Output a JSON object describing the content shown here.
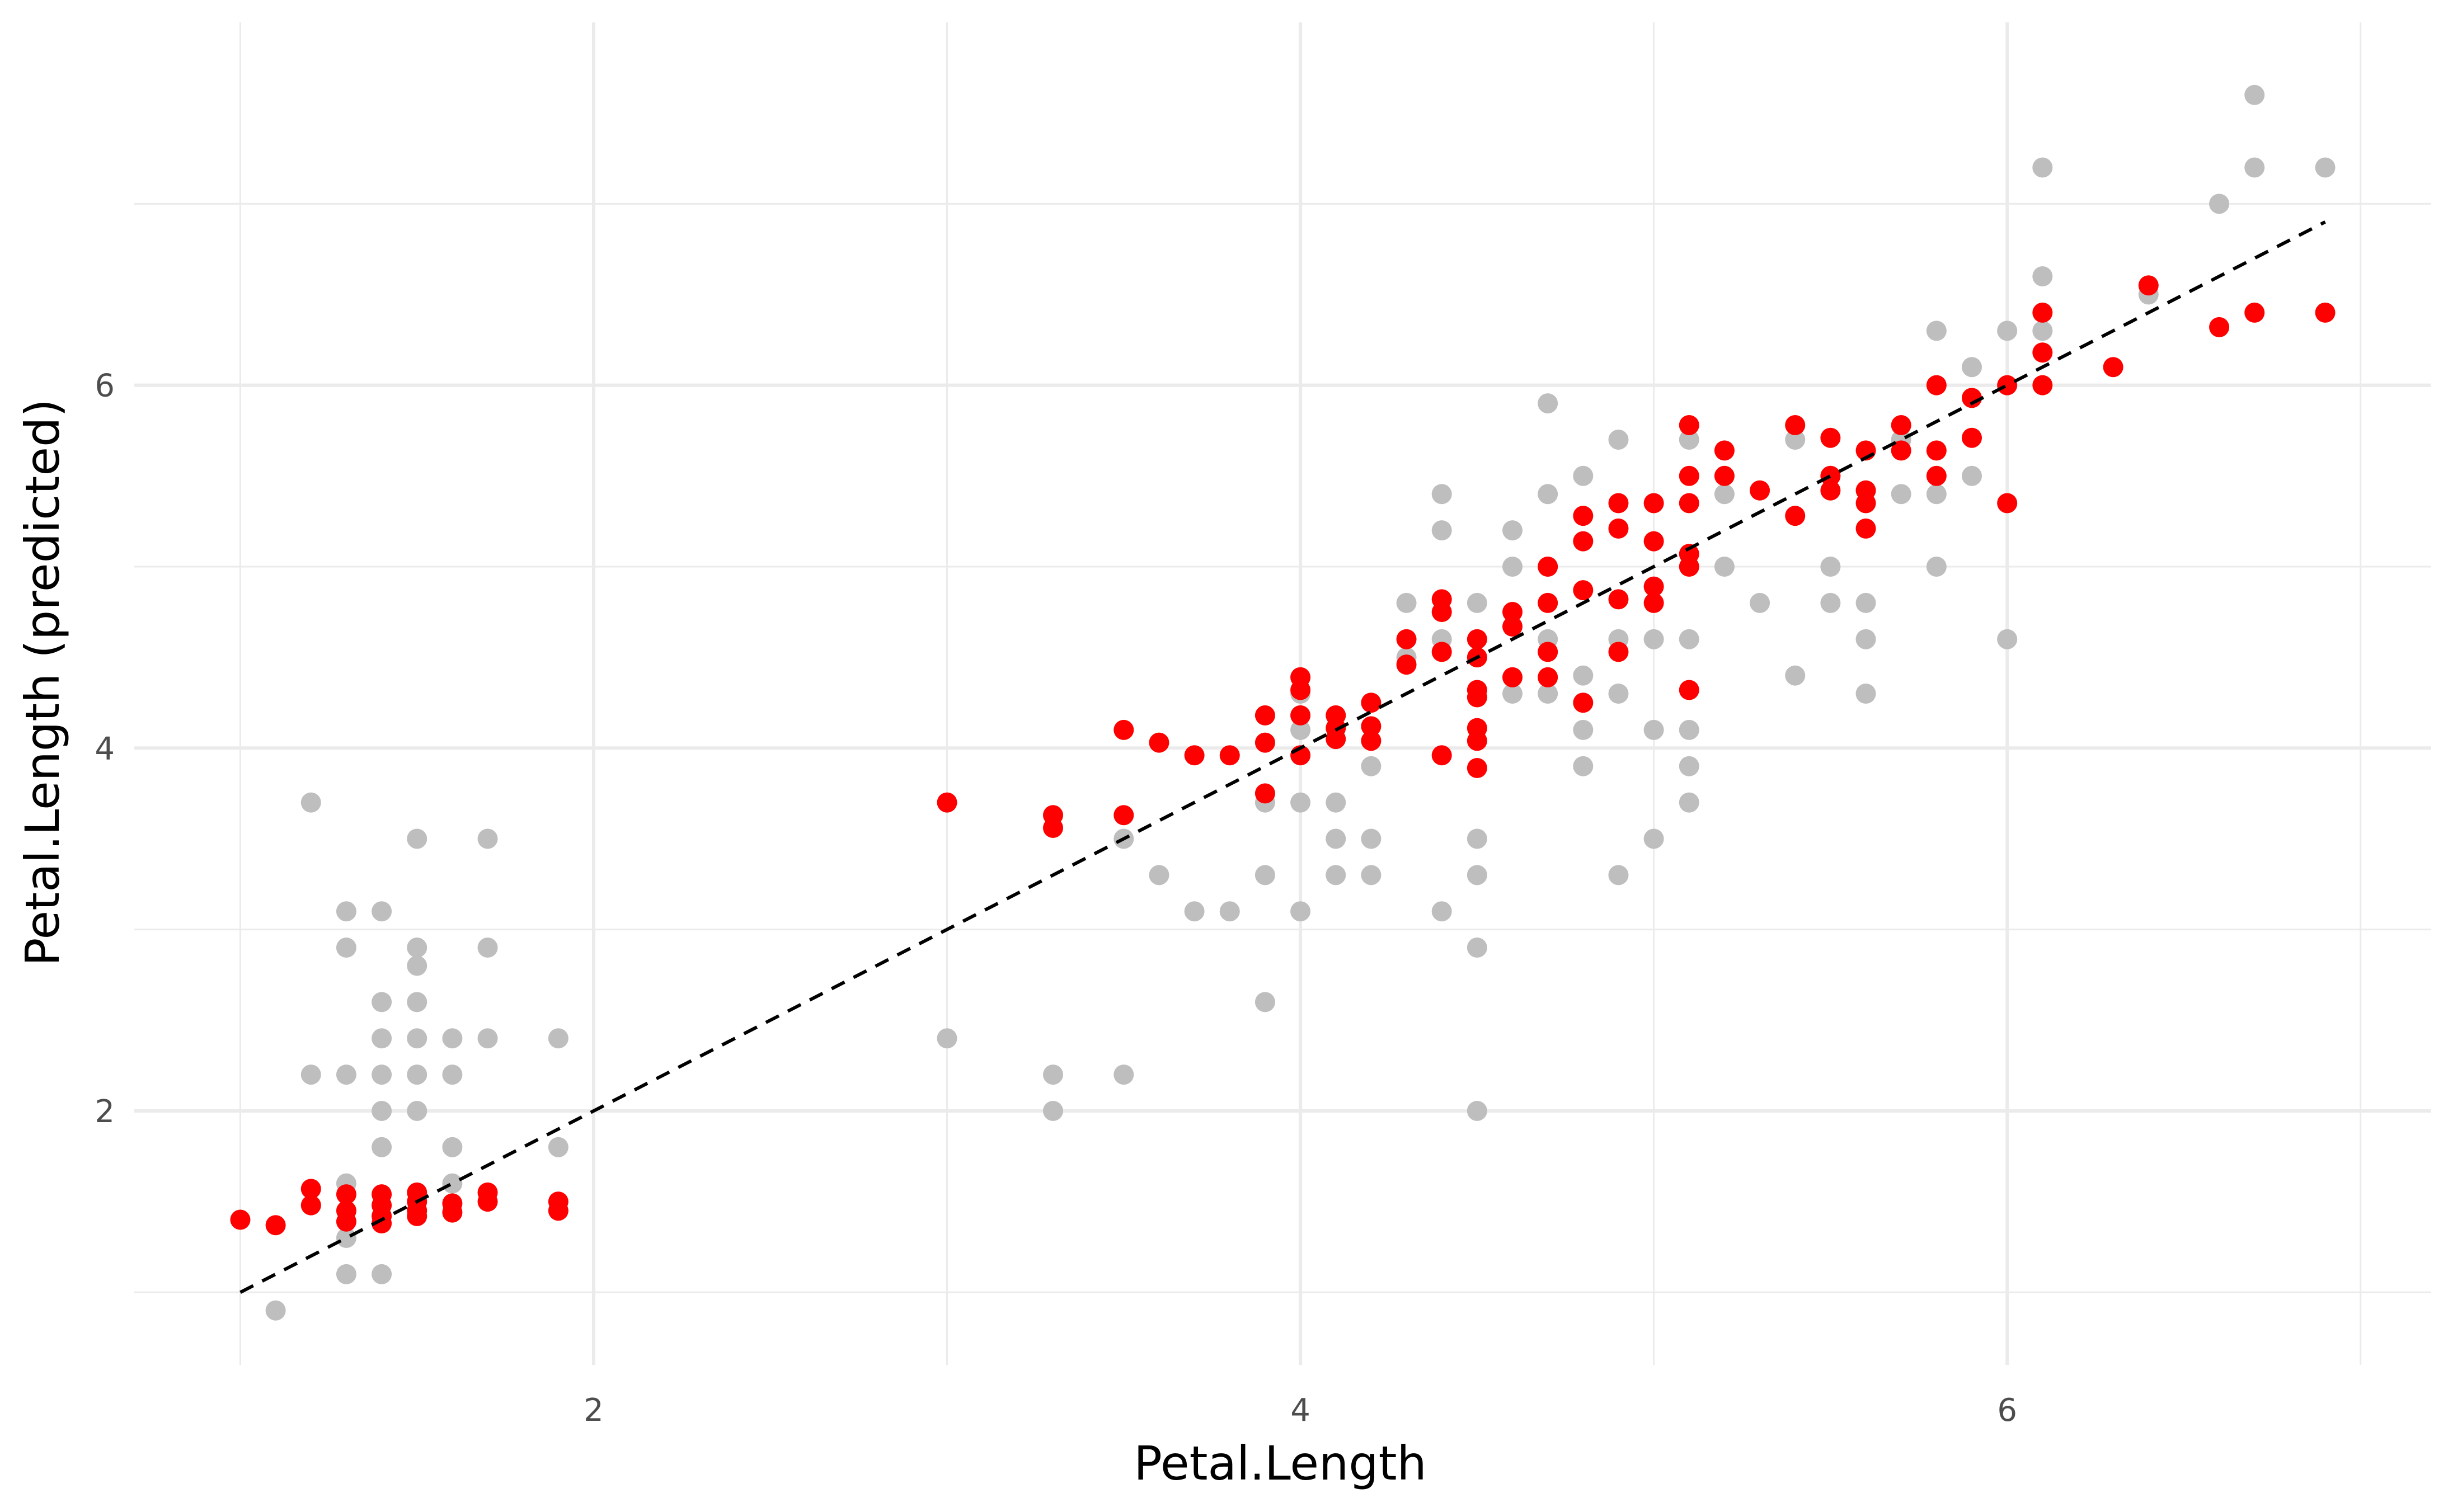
{
  "chart_data": {
    "type": "scatter",
    "title": "",
    "xlabel": "Petal.Length",
    "ylabel": "Petal.Length (predicted)",
    "xlim": [
      0.7,
      7.2
    ],
    "ylim": [
      0.6,
      8.0
    ],
    "x_ticks": [
      2,
      4,
      6
    ],
    "x_minor_ticks": [
      1,
      3,
      5,
      7
    ],
    "y_ticks": [
      2,
      4,
      6
    ],
    "y_minor_ticks": [
      1,
      3,
      5,
      7
    ],
    "x_tick_labels": [
      "2",
      "4",
      "6"
    ],
    "y_tick_labels": [
      "2",
      "4",
      "6"
    ],
    "grid": true,
    "legend": "none",
    "colors": {
      "background": "#ffffff",
      "grid": "#ebebeb",
      "gray_points": "#bebebe",
      "red_points": "#ff0000",
      "reference_line": "#000000"
    },
    "series": [
      {
        "color": "#bebebe",
        "points": [
          [
            1.0,
            1.4
          ],
          [
            1.1,
            0.9
          ],
          [
            1.2,
            3.7
          ],
          [
            1.2,
            2.2
          ],
          [
            1.3,
            3.1
          ],
          [
            1.3,
            2.9
          ],
          [
            1.3,
            2.2
          ],
          [
            1.3,
            1.6
          ],
          [
            1.3,
            1.3
          ],
          [
            1.3,
            1.1
          ],
          [
            1.4,
            3.1
          ],
          [
            1.4,
            2.6
          ],
          [
            1.4,
            2.4
          ],
          [
            1.4,
            2.2
          ],
          [
            1.4,
            2.0
          ],
          [
            1.4,
            1.8
          ],
          [
            1.4,
            1.1
          ],
          [
            1.5,
            3.5
          ],
          [
            1.5,
            2.9
          ],
          [
            1.5,
            2.8
          ],
          [
            1.5,
            2.6
          ],
          [
            1.5,
            2.4
          ],
          [
            1.5,
            2.2
          ],
          [
            1.5,
            2.0
          ],
          [
            1.6,
            2.4
          ],
          [
            1.6,
            2.2
          ],
          [
            1.6,
            1.8
          ],
          [
            1.6,
            1.6
          ],
          [
            1.7,
            3.5
          ],
          [
            1.7,
            2.9
          ],
          [
            1.7,
            2.4
          ],
          [
            1.9,
            2.4
          ],
          [
            1.9,
            1.8
          ],
          [
            3.0,
            2.4
          ],
          [
            3.3,
            2.2
          ],
          [
            3.3,
            2.0
          ],
          [
            3.5,
            3.5
          ],
          [
            3.5,
            2.2
          ],
          [
            3.6,
            3.3
          ],
          [
            3.7,
            3.1
          ],
          [
            3.8,
            3.1
          ],
          [
            3.9,
            3.7
          ],
          [
            3.9,
            3.3
          ],
          [
            3.9,
            2.6
          ],
          [
            4.0,
            4.3
          ],
          [
            4.0,
            4.1
          ],
          [
            4.0,
            3.7
          ],
          [
            4.0,
            3.1
          ],
          [
            4.1,
            3.7
          ],
          [
            4.1,
            3.5
          ],
          [
            4.1,
            3.3
          ],
          [
            4.2,
            3.9
          ],
          [
            4.2,
            3.5
          ],
          [
            4.2,
            3.3
          ],
          [
            4.3,
            4.8
          ],
          [
            4.3,
            4.5
          ],
          [
            4.4,
            4.6
          ],
          [
            4.4,
            5.4
          ],
          [
            4.4,
            5.2
          ],
          [
            4.4,
            3.1
          ],
          [
            4.5,
            4.8
          ],
          [
            4.5,
            4.5
          ],
          [
            4.5,
            3.5
          ],
          [
            4.5,
            3.3
          ],
          [
            4.5,
            2.9
          ],
          [
            4.5,
            2.0
          ],
          [
            4.6,
            5.2
          ],
          [
            4.6,
            5.0
          ],
          [
            4.6,
            4.3
          ],
          [
            4.7,
            5.9
          ],
          [
            4.7,
            5.4
          ],
          [
            4.7,
            5.0
          ],
          [
            4.7,
            4.6
          ],
          [
            4.7,
            4.3
          ],
          [
            4.8,
            5.5
          ],
          [
            4.8,
            4.4
          ],
          [
            4.8,
            4.1
          ],
          [
            4.8,
            3.9
          ],
          [
            4.9,
            5.7
          ],
          [
            4.9,
            4.6
          ],
          [
            4.9,
            4.3
          ],
          [
            4.9,
            3.3
          ],
          [
            5.0,
            4.6
          ],
          [
            5.0,
            4.1
          ],
          [
            5.0,
            3.5
          ],
          [
            5.1,
            5.7
          ],
          [
            5.1,
            4.6
          ],
          [
            5.1,
            4.1
          ],
          [
            5.1,
            3.9
          ],
          [
            5.1,
            3.7
          ],
          [
            5.2,
            5.4
          ],
          [
            5.2,
            5.0
          ],
          [
            5.3,
            4.8
          ],
          [
            5.4,
            5.7
          ],
          [
            5.4,
            4.4
          ],
          [
            5.5,
            5.5
          ],
          [
            5.5,
            5.0
          ],
          [
            5.5,
            4.8
          ],
          [
            5.6,
            4.8
          ],
          [
            5.6,
            4.6
          ],
          [
            5.6,
            4.3
          ],
          [
            5.7,
            5.7
          ],
          [
            5.7,
            5.4
          ],
          [
            5.8,
            6.3
          ],
          [
            5.8,
            5.4
          ],
          [
            5.8,
            5.0
          ],
          [
            5.9,
            6.1
          ],
          [
            5.9,
            5.5
          ],
          [
            6.0,
            6.3
          ],
          [
            6.0,
            4.6
          ],
          [
            6.1,
            7.2
          ],
          [
            6.1,
            6.6
          ],
          [
            6.1,
            6.3
          ],
          [
            6.4,
            6.5
          ],
          [
            6.6,
            7.0
          ],
          [
            6.7,
            7.2
          ],
          [
            6.9,
            7.2
          ],
          [
            6.7,
            7.6
          ]
        ]
      },
      {
        "color": "#ff0000",
        "points": [
          [
            1.0,
            1.4
          ],
          [
            1.1,
            1.37
          ],
          [
            1.2,
            1.57
          ],
          [
            1.2,
            1.48
          ],
          [
            1.3,
            1.54
          ],
          [
            1.3,
            1.45
          ],
          [
            1.3,
            1.39
          ],
          [
            1.4,
            1.54
          ],
          [
            1.4,
            1.48
          ],
          [
            1.4,
            1.42
          ],
          [
            1.4,
            1.38
          ],
          [
            1.5,
            1.55
          ],
          [
            1.5,
            1.5
          ],
          [
            1.5,
            1.45
          ],
          [
            1.5,
            1.42
          ],
          [
            1.6,
            1.49
          ],
          [
            1.6,
            1.44
          ],
          [
            1.7,
            1.55
          ],
          [
            1.7,
            1.5
          ],
          [
            1.9,
            1.5
          ],
          [
            1.9,
            1.45
          ],
          [
            3.0,
            3.7
          ],
          [
            3.3,
            3.63
          ],
          [
            3.3,
            3.56
          ],
          [
            3.5,
            3.63
          ],
          [
            3.5,
            4.1
          ],
          [
            3.6,
            4.03
          ],
          [
            3.7,
            3.96
          ],
          [
            3.8,
            3.96
          ],
          [
            3.9,
            4.18
          ],
          [
            3.9,
            4.03
          ],
          [
            3.9,
            3.75
          ],
          [
            4.0,
            4.39
          ],
          [
            4.0,
            4.32
          ],
          [
            4.0,
            4.18
          ],
          [
            4.0,
            3.96
          ],
          [
            4.1,
            4.18
          ],
          [
            4.1,
            4.11
          ],
          [
            4.1,
            4.05
          ],
          [
            4.2,
            4.25
          ],
          [
            4.2,
            4.12
          ],
          [
            4.2,
            4.04
          ],
          [
            4.3,
            4.6
          ],
          [
            4.3,
            4.46
          ],
          [
            4.4,
            4.82
          ],
          [
            4.4,
            4.75
          ],
          [
            4.4,
            4.53
          ],
          [
            4.4,
            3.96
          ],
          [
            4.5,
            4.6
          ],
          [
            4.5,
            4.5
          ],
          [
            4.5,
            4.32
          ],
          [
            4.5,
            4.28
          ],
          [
            4.5,
            4.11
          ],
          [
            4.5,
            4.04
          ],
          [
            4.5,
            3.89
          ],
          [
            4.6,
            4.75
          ],
          [
            4.6,
            4.67
          ],
          [
            4.6,
            4.39
          ],
          [
            4.7,
            5.0
          ],
          [
            4.7,
            4.8
          ],
          [
            4.7,
            4.53
          ],
          [
            4.7,
            4.39
          ],
          [
            4.8,
            5.28
          ],
          [
            4.8,
            5.14
          ],
          [
            4.8,
            4.87
          ],
          [
            4.8,
            4.25
          ],
          [
            4.9,
            5.35
          ],
          [
            4.9,
            5.21
          ],
          [
            4.9,
            4.82
          ],
          [
            4.9,
            4.53
          ],
          [
            5.0,
            5.35
          ],
          [
            5.0,
            5.14
          ],
          [
            5.0,
            4.89
          ],
          [
            5.0,
            4.8
          ],
          [
            5.1,
            5.78
          ],
          [
            5.1,
            5.5
          ],
          [
            5.1,
            5.35
          ],
          [
            5.1,
            5.07
          ],
          [
            5.1,
            5.0
          ],
          [
            5.1,
            4.32
          ],
          [
            5.2,
            5.64
          ],
          [
            5.2,
            5.5
          ],
          [
            5.3,
            5.42
          ],
          [
            5.4,
            5.78
          ],
          [
            5.4,
            5.28
          ],
          [
            5.5,
            5.71
          ],
          [
            5.5,
            5.5
          ],
          [
            5.5,
            5.42
          ],
          [
            5.6,
            5.64
          ],
          [
            5.6,
            5.42
          ],
          [
            5.6,
            5.35
          ],
          [
            5.6,
            5.21
          ],
          [
            5.7,
            5.78
          ],
          [
            5.7,
            5.64
          ],
          [
            5.8,
            6.0
          ],
          [
            5.8,
            5.64
          ],
          [
            5.8,
            5.5
          ],
          [
            5.9,
            5.93
          ],
          [
            5.9,
            5.71
          ],
          [
            6.0,
            6.0
          ],
          [
            6.0,
            5.35
          ],
          [
            6.1,
            6.4
          ],
          [
            6.1,
            6.18
          ],
          [
            6.1,
            6.0
          ],
          [
            6.3,
            6.1
          ],
          [
            6.4,
            6.55
          ],
          [
            6.6,
            6.32
          ],
          [
            6.7,
            6.4
          ],
          [
            6.9,
            6.4
          ]
        ]
      }
    ],
    "reference_line": {
      "style": "dashed",
      "x": [
        1.0,
        6.9
      ],
      "y": [
        1.0,
        6.9
      ]
    }
  }
}
